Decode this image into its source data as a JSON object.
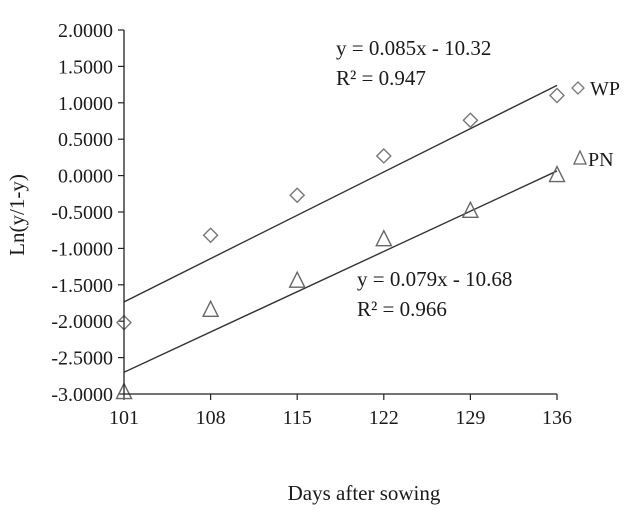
{
  "chart_data": {
    "type": "scatter",
    "xlabel": "Days after sowing",
    "ylabel": "Ln(y/1-y)",
    "xlim": [
      101,
      136
    ],
    "ylim": [
      -3.0,
      2.0
    ],
    "x_ticks": [
      "101",
      "108",
      "115",
      "122",
      "129",
      "136"
    ],
    "y_ticks": [
      "2.0000",
      "1.5000",
      "1.0000",
      "0.5000",
      "0.0000",
      "-0.5000",
      "-1.0000",
      "-1.5000",
      "-2.0000",
      "-2.5000",
      "-3.0000"
    ],
    "grid": false,
    "legend_position": "right",
    "series": [
      {
        "name": "WP",
        "marker": "diamond",
        "x": [
          101,
          108,
          115,
          122,
          129,
          136
        ],
        "y": [
          -2.02,
          -0.82,
          -0.27,
          0.27,
          0.76,
          1.1
        ],
        "trendline": {
          "slope": 0.085,
          "intercept": -10.32
        },
        "equation": "y = 0.085x - 10.32",
        "r2": "R² = 0.947"
      },
      {
        "name": "PN",
        "marker": "triangle",
        "x": [
          101,
          108,
          115,
          122,
          129,
          136
        ],
        "y": [
          -2.98,
          -1.85,
          -1.45,
          -0.88,
          -0.49,
          0.0
        ],
        "trendline": {
          "slope": 0.079,
          "intercept": -10.68
        },
        "equation": "y = 0.079x - 10.68",
        "r2": "R² = 0.966"
      }
    ]
  }
}
